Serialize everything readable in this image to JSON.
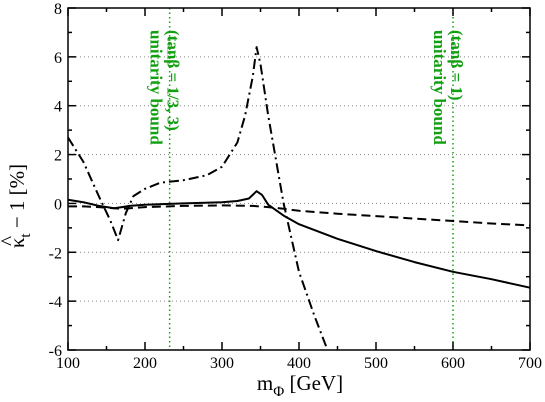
{
  "chart_data": {
    "type": "line",
    "xlabel": {
      "main": "m",
      "sub": "Φ",
      "unit": " [GeV]"
    },
    "ylabel": {
      "main": "κ",
      "rest": "t",
      "tail": " − 1 [%]"
    },
    "xlim": [
      100,
      700
    ],
    "ylim": [
      -6,
      8
    ],
    "x_ticks": [
      100,
      200,
      300,
      400,
      500,
      600,
      700
    ],
    "y_ticks": [
      -6,
      -4,
      -2,
      0,
      2,
      4,
      6,
      8
    ],
    "grid": "horizontal dotted",
    "series": [
      {
        "style": "solid",
        "x": [
          100,
          120,
          140,
          160,
          170,
          180,
          200,
          250,
          300,
          320,
          335,
          345,
          352,
          360,
          380,
          400,
          450,
          500,
          550,
          600,
          650,
          700
        ],
        "y": [
          0.15,
          0.05,
          -0.1,
          -0.2,
          -0.15,
          -0.1,
          -0.05,
          0.0,
          0.05,
          0.1,
          0.2,
          0.5,
          0.35,
          -0.05,
          -0.5,
          -0.85,
          -1.45,
          -1.95,
          -2.4,
          -2.8,
          -3.1,
          -3.45
        ]
      },
      {
        "style": "dashed",
        "x": [
          100,
          120,
          140,
          160,
          170,
          180,
          200,
          250,
          300,
          340,
          360,
          380,
          400,
          450,
          500,
          550,
          600,
          650,
          700
        ],
        "y": [
          -0.12,
          -0.12,
          -0.15,
          -0.2,
          -0.22,
          -0.2,
          -0.15,
          -0.1,
          -0.08,
          -0.1,
          -0.15,
          -0.22,
          -0.3,
          -0.42,
          -0.52,
          -0.62,
          -0.72,
          -0.82,
          -0.9
        ]
      },
      {
        "style": "dash-dot",
        "x": [
          100,
          120,
          140,
          155,
          165,
          175,
          185,
          200,
          220,
          250,
          280,
          300,
          320,
          330,
          340,
          345,
          350,
          360,
          380,
          400,
          420,
          437
        ],
        "y": [
          2.7,
          1.7,
          0.3,
          -0.7,
          -1.5,
          -0.4,
          0.3,
          0.6,
          0.85,
          0.95,
          1.15,
          1.5,
          2.5,
          3.6,
          5.2,
          6.4,
          5.7,
          3.6,
          0.0,
          -2.8,
          -4.6,
          -6.0
        ]
      }
    ],
    "vertical_lines": [
      {
        "x": 232,
        "style": "dotted",
        "color": "#12a012"
      },
      {
        "x": 600,
        "style": "dotted",
        "color": "#12a012"
      }
    ],
    "annotations": [
      {
        "line1": "unitarity bound",
        "line2": "(tanβ = 1/3, 3)",
        "x": 207,
        "y": 8,
        "color": "#12a012"
      },
      {
        "line1": "unitarity bound",
        "line2": "(tanβ = 1)",
        "x": 575,
        "y": 8,
        "color": "#12a012"
      }
    ]
  }
}
